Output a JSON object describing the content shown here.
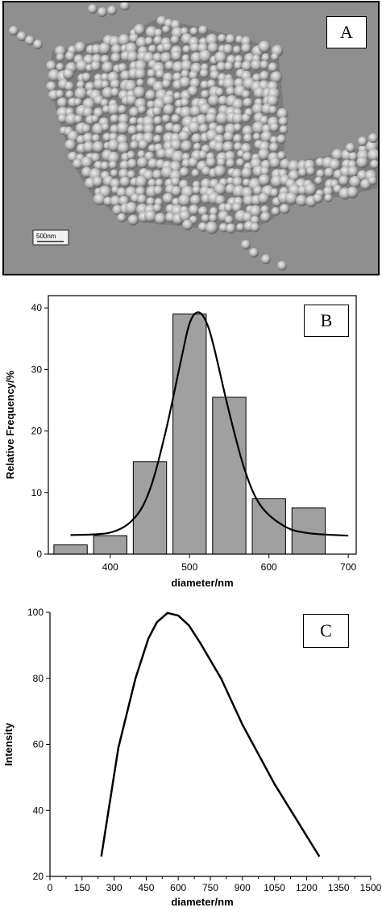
{
  "panel_a": {
    "label": "A",
    "scale_bar_text": "500nm"
  },
  "chart_data": [
    {
      "type": "bar",
      "panel_label": "B",
      "xlabel": "diameter/nm",
      "ylabel": "Relative Frequency/%",
      "xlim": [
        322,
        710
      ],
      "ylim": [
        0,
        42
      ],
      "xticks": [
        400,
        500,
        600,
        700
      ],
      "yticks": [
        0,
        10,
        20,
        30,
        40
      ],
      "grid": false,
      "bin_width": 50,
      "categories": [
        350,
        400,
        450,
        500,
        550,
        600,
        650
      ],
      "values": [
        1.5,
        3,
        15,
        39,
        25.5,
        9,
        7.5
      ],
      "bar_color": "#a0a0a0",
      "fit_curve": {
        "x": [
          350,
          400,
          430,
          450,
          470,
          490,
          500,
          510,
          520,
          530,
          550,
          570,
          590,
          620,
          650,
          700
        ],
        "y": [
          3.1,
          3.5,
          5.8,
          10.5,
          20.0,
          32.0,
          37.5,
          39.3,
          38.0,
          34.0,
          23.0,
          13.5,
          7.8,
          4.5,
          3.4,
          3.0
        ]
      }
    },
    {
      "type": "line",
      "panel_label": "C",
      "xlabel": "diameter/nm",
      "ylabel": "Intensity",
      "xlim": [
        0,
        1500
      ],
      "ylim": [
        20,
        100
      ],
      "xticks": [
        0,
        150,
        300,
        450,
        600,
        750,
        900,
        1050,
        1200,
        1350,
        1500
      ],
      "yticks": [
        20,
        40,
        60,
        80,
        100
      ],
      "grid": false,
      "x": [
        240,
        320,
        400,
        460,
        500,
        550,
        600,
        650,
        700,
        800,
        900,
        1050,
        1260
      ],
      "y": [
        26,
        59,
        80,
        92,
        97,
        99.8,
        99,
        96,
        91,
        80,
        66,
        48,
        26
      ]
    }
  ]
}
